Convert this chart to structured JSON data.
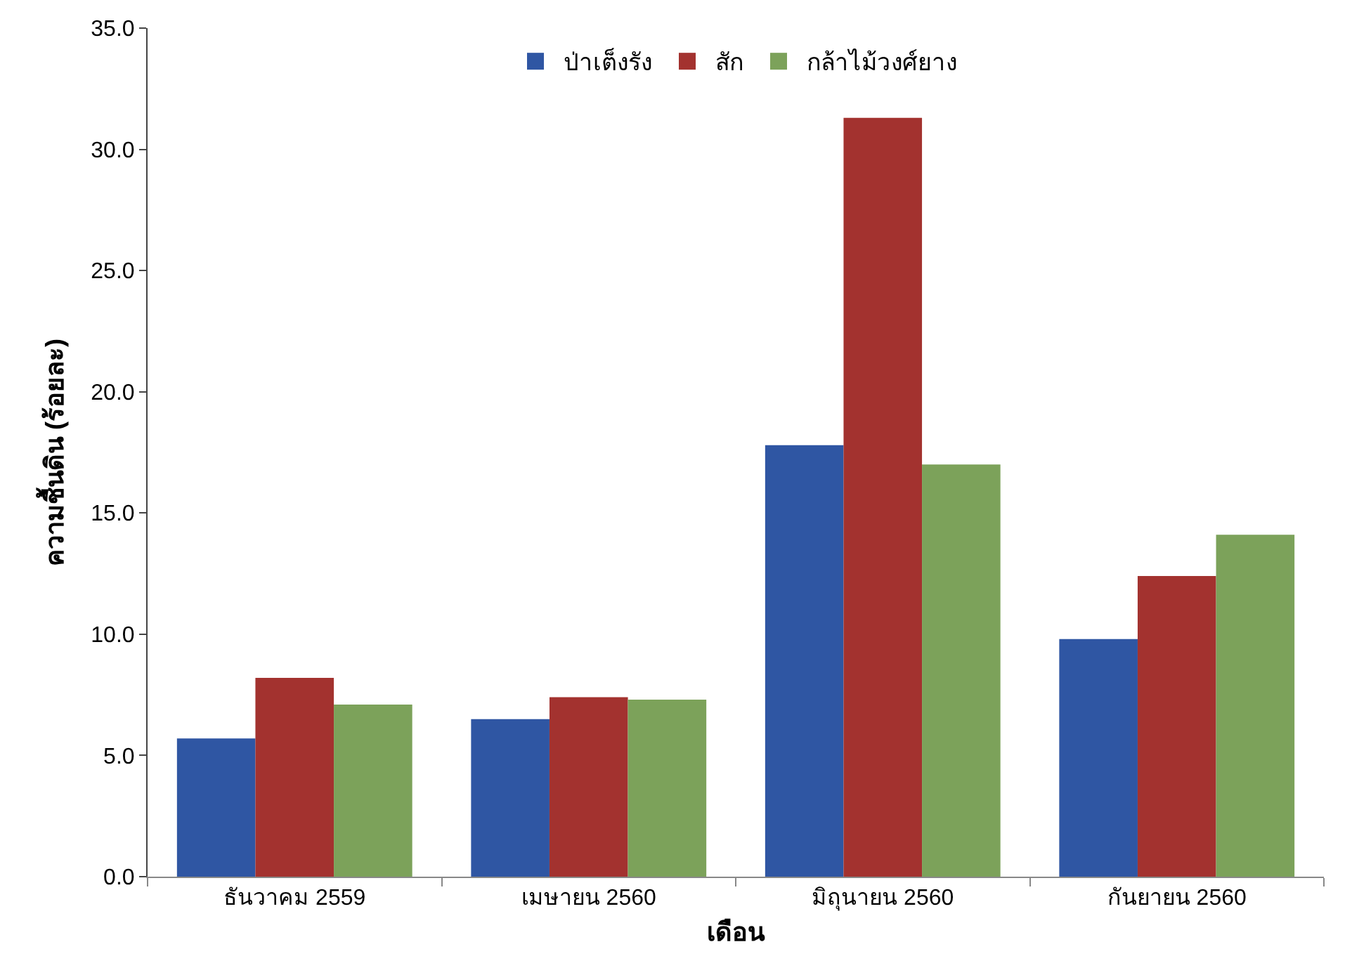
{
  "chart_data": {
    "type": "bar",
    "xlabel": "เดือน",
    "ylabel": "ความชื้นดิน (ร้อยละ)",
    "categories": [
      "ธันวาคม 2559",
      "เมษายน 2560",
      "มิถุนายน 2560",
      "กันยายน 2560"
    ],
    "series": [
      {
        "name": "ป่าเต็งรัง",
        "color": "#2f56a3",
        "values": [
          5.7,
          6.5,
          17.8,
          9.8
        ]
      },
      {
        "name": "สัก",
        "color": "#a3322f",
        "values": [
          8.2,
          7.4,
          31.3,
          12.4
        ]
      },
      {
        "name": "กล้าไม้วงศ์ยาง",
        "color": "#7ca25a",
        "values": [
          7.1,
          7.3,
          17.0,
          14.1
        ]
      }
    ],
    "ylim": [
      0,
      35
    ],
    "yticks": [
      {
        "value": 0,
        "label": "0.0"
      },
      {
        "value": 5,
        "label": "5.0"
      },
      {
        "value": 10,
        "label": "10.0"
      },
      {
        "value": 15,
        "label": "15.0"
      },
      {
        "value": 20,
        "label": "20.0"
      },
      {
        "value": 25,
        "label": "25.0"
      },
      {
        "value": 30,
        "label": "30.0"
      },
      {
        "value": 35,
        "label": "35.0"
      }
    ],
    "grid": false,
    "legend": "top"
  }
}
